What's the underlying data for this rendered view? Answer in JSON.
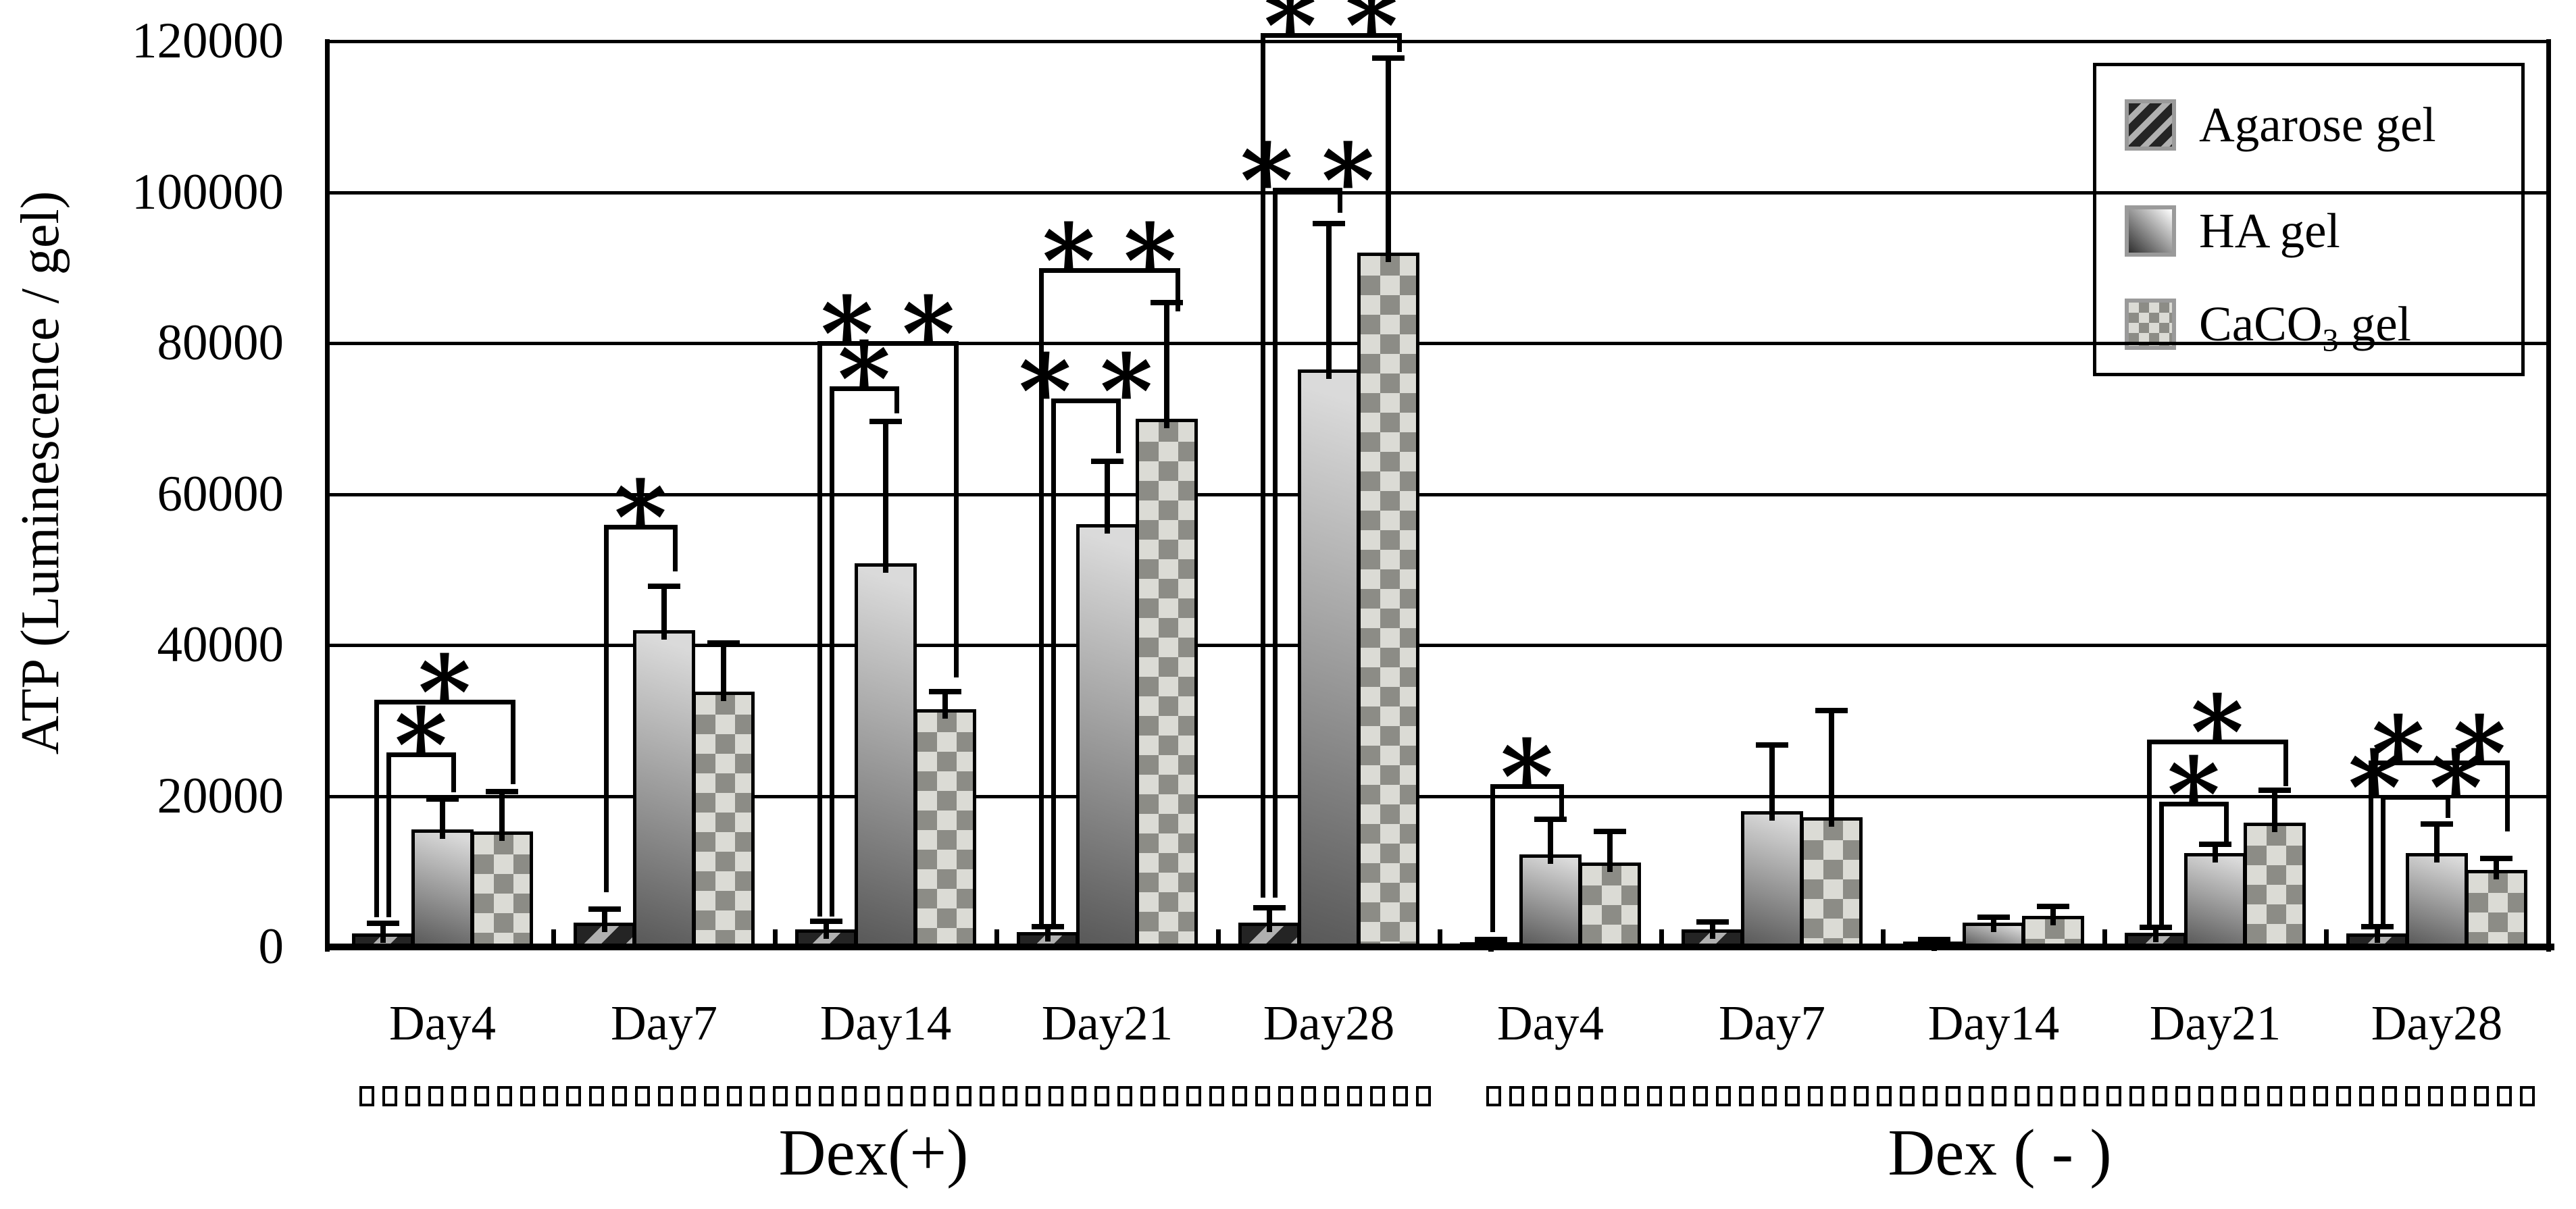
{
  "y_axis": {
    "label": "ATP (Luminescence / gel)",
    "tick_labels": [
      "0",
      "20000",
      "40000",
      "60000",
      "80000",
      "100000",
      "120000"
    ]
  },
  "legend": {
    "items": [
      {
        "label": "Agarose gel",
        "pattern": "diagonal-stripes"
      },
      {
        "label": "HA gel",
        "pattern": "gray-gradient"
      },
      {
        "label": "CaCO3 gel",
        "pre": "CaCO",
        "sub": "3",
        "post": " gel",
        "pattern": "checkerboard"
      }
    ]
  },
  "conditions": [
    {
      "label": "Dex(+)"
    },
    {
      "label": "Dex ( - )"
    }
  ],
  "colors": {
    "bar_border": "#000000",
    "agarose_dark": "#242424",
    "agarose_light": "#b0b0b0",
    "ha_dark": "#585858",
    "ha_light": "#dadada",
    "caco3_dark": "#8c8c86",
    "caco3_light": "#dbdbd5",
    "axis": "#000000"
  },
  "chart_data": {
    "type": "bar",
    "title": "",
    "xlabel": "",
    "ylabel": "ATP (Luminescence / gel)",
    "ylim": [
      0,
      120000
    ],
    "yticks": [
      0,
      20000,
      40000,
      60000,
      80000,
      100000,
      120000
    ],
    "grid": true,
    "legend_position": "top-right",
    "series": [
      "Agarose gel",
      "HA gel",
      "CaCO3 gel"
    ],
    "groups": [
      {
        "condition": "Dex(+)",
        "day": "Day4",
        "values": [
          1800,
          15600,
          15300
        ],
        "errors_up": [
          1300,
          4000,
          5300
        ],
        "brackets": [
          {
            "from": 0,
            "to": 1,
            "label": "*",
            "line": 25500,
            "left_end": 4200,
            "right_end": 20800
          },
          {
            "from": 0,
            "to": 2,
            "label": "*",
            "line": 32500,
            "left_end": 4200,
            "right_end": 21800
          }
        ]
      },
      {
        "condition": "Dex(+)",
        "day": "Day7",
        "values": [
          3200,
          42000,
          33800
        ],
        "errors_up": [
          1800,
          5800,
          6500
        ],
        "brackets": [
          {
            "from": 0,
            "to": 1,
            "label": "*",
            "line": 55700,
            "left_end": 7500,
            "right_end": 50000
          }
        ]
      },
      {
        "condition": "Dex(+)",
        "day": "Day14",
        "values": [
          2300,
          50800,
          31500
        ],
        "errors_up": [
          1100,
          18800,
          2300
        ],
        "brackets": [
          {
            "from": 0,
            "to": 1,
            "label": "*",
            "line": 74000,
            "left_end": 4300,
            "right_end": 71000
          },
          {
            "from": 0,
            "to": 2,
            "label": "**",
            "line": 80000,
            "left_end": 4300,
            "right_end": 36000
          }
        ]
      },
      {
        "condition": "Dex(+)",
        "day": "Day21",
        "values": [
          2000,
          56000,
          70000
        ],
        "errors_up": [
          700,
          8300,
          15400
        ],
        "brackets": [
          {
            "from": 0,
            "to": 1,
            "label": "**",
            "line": 72400,
            "left_end": 2600,
            "right_end": 65700
          },
          {
            "from": 0,
            "to": 2,
            "label": "**",
            "line": 89700,
            "left_end": 2600,
            "right_end": 84500
          }
        ]
      },
      {
        "condition": "Dex(+)",
        "day": "Day28",
        "values": [
          3200,
          76500,
          92000
        ],
        "errors_up": [
          2000,
          19300,
          25800
        ],
        "brackets": [
          {
            "from": 0,
            "to": 1,
            "label": "**",
            "line": 100300,
            "left_end": 6800,
            "right_end": 97500
          },
          {
            "from": 0,
            "to": 2,
            "label": "**",
            "line": 120800,
            "left_end": 6800,
            "right_end": 118800
          }
        ]
      },
      {
        "condition": "Dex(-)",
        "day": "Day4",
        "values": [
          600,
          12300,
          11200
        ],
        "errors_up": [
          400,
          4600,
          4100
        ],
        "brackets": [
          {
            "from": 0,
            "to": 1,
            "label": "*",
            "line": 21300,
            "left_end": 2200,
            "right_end": 17500
          }
        ]
      },
      {
        "condition": "Dex(-)",
        "day": "Day7",
        "values": [
          2300,
          18000,
          17200
        ],
        "errors_up": [
          1000,
          8800,
          14100
        ],
        "brackets": []
      },
      {
        "condition": "Dex(-)",
        "day": "Day14",
        "values": [
          700,
          3200,
          4100
        ],
        "errors_up": [
          300,
          700,
          1300
        ],
        "brackets": []
      },
      {
        "condition": "Dex(-)",
        "day": "Day21",
        "values": [
          1900,
          12400,
          16500
        ],
        "errors_up": [
          700,
          1200,
          4300
        ],
        "brackets": [
          {
            "from": 0,
            "to": 1,
            "label": "*",
            "line": 19000,
            "left_end": 3200,
            "right_end": 14200
          },
          {
            "from": 0,
            "to": 2,
            "label": "*",
            "line": 27200,
            "left_end": 3200,
            "right_end": 21600
          }
        ]
      },
      {
        "condition": "Dex(-)",
        "day": "Day28",
        "values": [
          1800,
          12400,
          10200
        ],
        "errors_up": [
          900,
          3900,
          1500
        ],
        "brackets": [
          {
            "from": 0,
            "to": 1,
            "label": "**",
            "line": 19900,
            "left_end": 3200,
            "right_end": 17400
          },
          {
            "from": 0,
            "to": 2,
            "label": "**",
            "line": 24400,
            "left_end": 3200,
            "right_end": 15600
          }
        ]
      }
    ]
  }
}
